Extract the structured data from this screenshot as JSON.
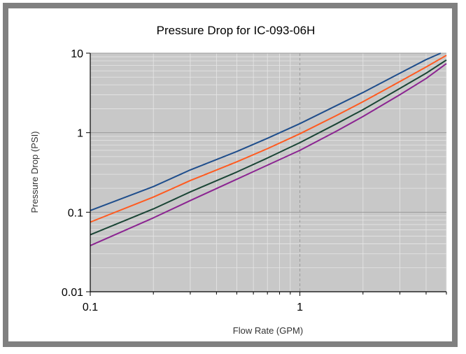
{
  "chart_data": {
    "type": "line",
    "title": "Pressure Drop for IC-093-06H",
    "xlabel": "Flow Rate (GPM)",
    "ylabel": "Pressure Drop (PSI)",
    "x_scale": "log",
    "y_scale": "log",
    "xlim": [
      0.1,
      5
    ],
    "ylim": [
      0.01,
      10
    ],
    "x_ticks": [
      "0.1",
      "1"
    ],
    "y_ticks": [
      "0.01",
      "0.1",
      "1",
      "10"
    ],
    "grid": true,
    "legend": "none",
    "plot_background": "#c8c8c8",
    "series": [
      {
        "color": "#1f4e8c",
        "x": [
          0.1,
          0.2,
          0.3,
          0.5,
          0.7,
          1.0,
          1.5,
          2.0,
          3.0,
          4.0,
          4.7
        ],
        "y": [
          0.105,
          0.21,
          0.34,
          0.58,
          0.85,
          1.3,
          2.2,
          3.2,
          5.6,
          8.3,
          10.0
        ]
      },
      {
        "color": "#ff5a1f",
        "x": [
          0.1,
          0.2,
          0.3,
          0.5,
          0.7,
          1.0,
          1.5,
          2.0,
          3.0,
          4.0,
          5.0
        ],
        "y": [
          0.075,
          0.155,
          0.25,
          0.43,
          0.63,
          0.97,
          1.65,
          2.45,
          4.4,
          6.7,
          9.4
        ]
      },
      {
        "color": "#1a4535",
        "x": [
          0.1,
          0.2,
          0.3,
          0.5,
          0.7,
          1.0,
          1.5,
          2.0,
          3.0,
          4.0,
          5.0
        ],
        "y": [
          0.052,
          0.11,
          0.18,
          0.32,
          0.48,
          0.75,
          1.3,
          1.95,
          3.6,
          5.6,
          8.2
        ]
      },
      {
        "color": "#8b2491",
        "x": [
          0.1,
          0.2,
          0.3,
          0.5,
          0.7,
          1.0,
          1.5,
          2.0,
          3.0,
          4.0,
          5.0
        ],
        "y": [
          0.038,
          0.085,
          0.14,
          0.26,
          0.39,
          0.6,
          1.05,
          1.6,
          3.0,
          4.8,
          7.4
        ]
      }
    ]
  }
}
